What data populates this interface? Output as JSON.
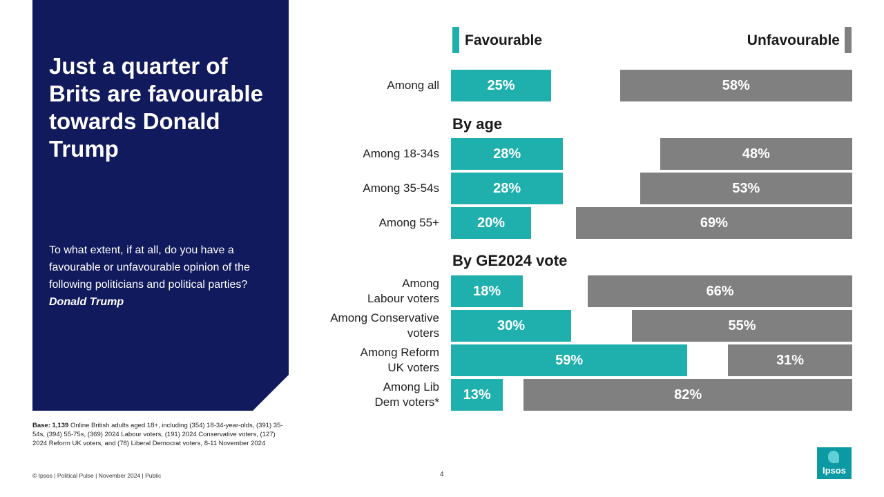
{
  "headline": "Just a quarter of Brits are favourable towards Donald Trump",
  "question": {
    "text": "To what extent, if at all, do you have a favourable or unfavourable opinion of the following politicians and political parties?",
    "emphasis": "Donald Trump"
  },
  "base": {
    "label": "Base: 1,139",
    "text": "Online British adults aged 18+, including (354) 18-34-year-olds, (391) 35-54s, (394) 55-75s, (369) 2024 Labour voters, (191) 2024 Conservative voters, (127) 2024 Reform UK voters, and (78) Liberal Democrat voters, 8-11 November 2024"
  },
  "footer": "© Ipsos | Political Pulse | November 2024 | Public",
  "page_number": "4",
  "logo_text": "Ipsos",
  "colors": {
    "favourable": "#1fb0ae",
    "unfavourable": "#808080",
    "panel": "#111a5c"
  },
  "chart_data": {
    "type": "bar",
    "orientation": "horizontal",
    "title": "Just a quarter of Brits are favourable towards Donald Trump",
    "legend": [
      "Favourable",
      "Unfavourable"
    ],
    "sections": [
      "By age",
      "By GE2024 vote"
    ],
    "categories": [
      "Among all",
      "Among 18-34s",
      "Among 35-54s",
      "Among 55+",
      "Among Labour voters",
      "Among Conservative voters",
      "Among Reform UK voters",
      "Among Lib Dem voters*"
    ],
    "series": [
      {
        "name": "Favourable",
        "values": [
          25,
          28,
          28,
          20,
          18,
          30,
          59,
          13
        ]
      },
      {
        "name": "Unfavourable",
        "values": [
          58,
          48,
          53,
          69,
          66,
          55,
          31,
          82
        ]
      }
    ],
    "unit": "%",
    "xlim": [
      0,
      100
    ]
  }
}
